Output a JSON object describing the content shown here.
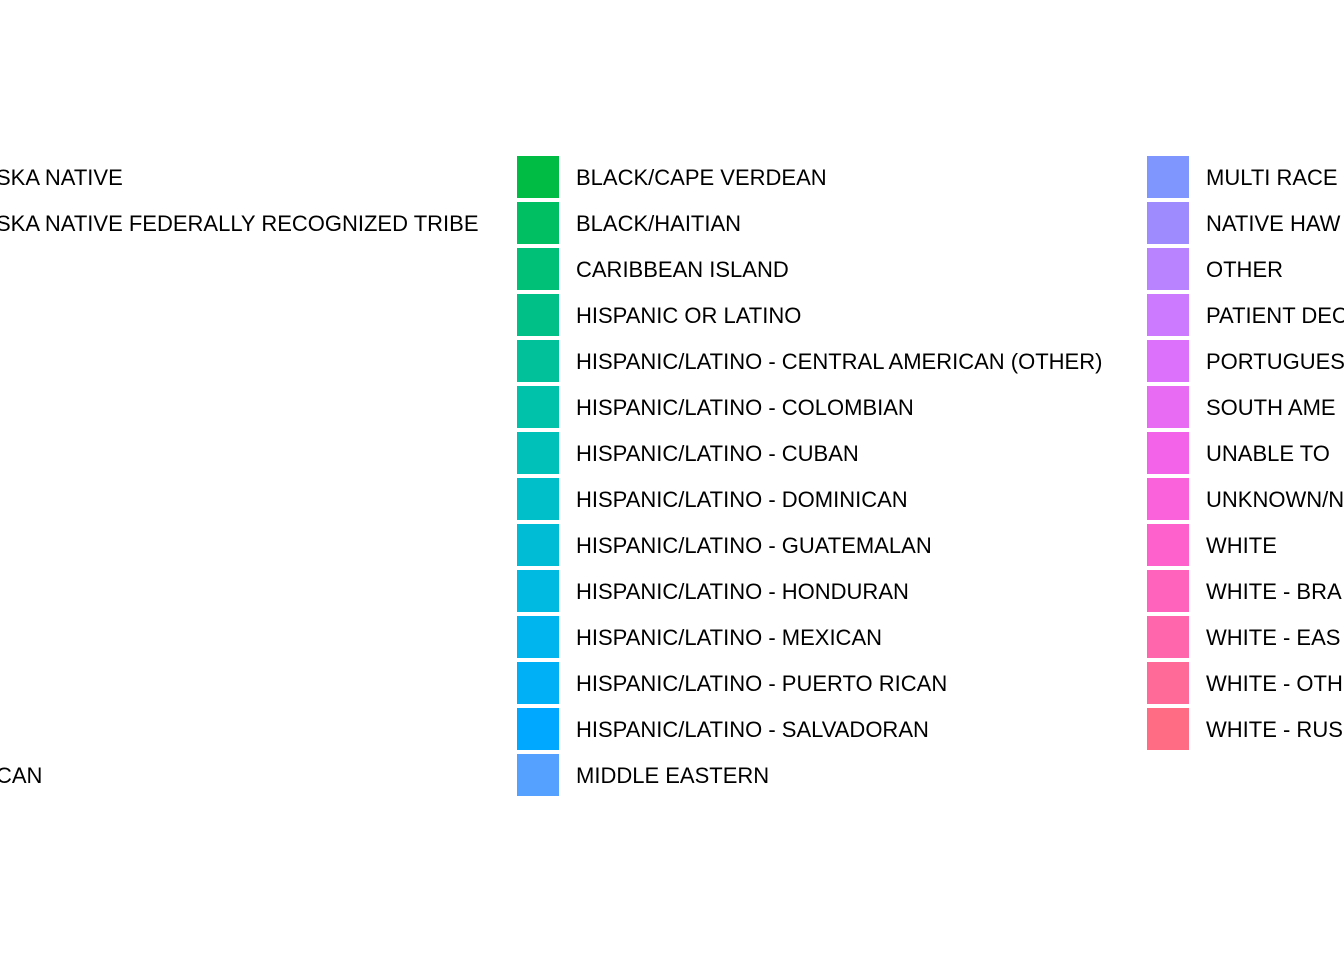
{
  "chart_data": {
    "type": "legend",
    "legend": {
      "columns": [
        {
          "entries": [
            {
              "label": "SKA NATIVE",
              "color": null
            },
            {
              "label": "SKA NATIVE FEDERALLY RECOGNIZED TRIBE",
              "color": null
            },
            {
              "label": "",
              "color": null
            },
            {
              "label": "",
              "color": null
            },
            {
              "label": "",
              "color": null
            },
            {
              "label": "",
              "color": null
            },
            {
              "label": "",
              "color": null
            },
            {
              "label": "",
              "color": null
            },
            {
              "label": "",
              "color": null
            },
            {
              "label": "",
              "color": null
            },
            {
              "label": "",
              "color": null
            },
            {
              "label": "",
              "color": null
            },
            {
              "label": "",
              "color": null
            },
            {
              "label": "CAN",
              "color": null
            }
          ]
        },
        {
          "entries": [
            {
              "label": "BLACK/CAPE VERDEAN",
              "color": "#00BC45"
            },
            {
              "label": "BLACK/HAITIAN",
              "color": "#00BE62"
            },
            {
              "label": "CARIBBEAN ISLAND",
              "color": "#00BF76"
            },
            {
              "label": "HISPANIC OR LATINO",
              "color": "#00C088"
            },
            {
              "label": "HISPANIC/LATINO - CENTRAL AMERICAN (OTHER)",
              "color": "#00C19A"
            },
            {
              "label": "HISPANIC/LATINO - COLOMBIAN",
              "color": "#00C1AA"
            },
            {
              "label": "HISPANIC/LATINO - CUBAN",
              "color": "#00C0BA"
            },
            {
              "label": "HISPANIC/LATINO - DOMINICAN",
              "color": "#00BFC9"
            },
            {
              "label": "HISPANIC/LATINO - GUATEMALAN",
              "color": "#00BDD5"
            },
            {
              "label": "HISPANIC/LATINO - HONDURAN",
              "color": "#00BAE2"
            },
            {
              "label": "HISPANIC/LATINO - MEXICAN",
              "color": "#00B5EE"
            },
            {
              "label": "HISPANIC/LATINO - PUERTO RICAN",
              "color": "#00B0F6"
            },
            {
              "label": "HISPANIC/LATINO - SALVADORAN",
              "color": "#00A9FF"
            },
            {
              "label": "MIDDLE EASTERN",
              "color": "#54A1FF"
            }
          ]
        },
        {
          "entries": [
            {
              "label": "MULTI RACE",
              "color": "#7F96FF"
            },
            {
              "label": "NATIVE HAW",
              "color": "#9E8CFF"
            },
            {
              "label": "OTHER",
              "color": "#B983FF"
            },
            {
              "label": "PATIENT DEC",
              "color": "#CC7AFF"
            },
            {
              "label": "PORTUGUES",
              "color": "#DC72FB"
            },
            {
              "label": "SOUTH AME",
              "color": "#E86BF4"
            },
            {
              "label": "UNABLE TO",
              "color": "#F263E9"
            },
            {
              "label": "UNKNOWN/N",
              "color": "#FA62DB"
            },
            {
              "label": "WHITE",
              "color": "#FF61CC"
            },
            {
              "label": "WHITE - BRA",
              "color": "#FF63BC"
            },
            {
              "label": "WHITE - EAS",
              "color": "#FF66AB"
            },
            {
              "label": "WHITE - OTH",
              "color": "#FF6A98"
            },
            {
              "label": "WHITE - RUS",
              "color": "#FF6C84"
            }
          ]
        }
      ]
    }
  }
}
